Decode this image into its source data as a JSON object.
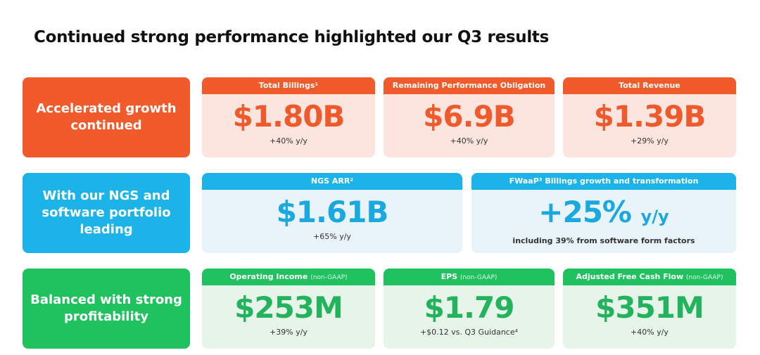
{
  "title": "Continued strong performance highlighted our Q3 results",
  "colors": {
    "orange": "#f15a2b",
    "blue": "#1cb4e8",
    "green": "#1fc25e"
  },
  "rows": [
    {
      "label": "Accelerated growth continued",
      "cards": [
        {
          "header": "Total Billings¹",
          "value": "$1.80B",
          "sub": "+40% y/y"
        },
        {
          "header": "Remaining Performance Obligation",
          "value": "$6.9B",
          "sub": "+40% y/y"
        },
        {
          "header": "Total Revenue",
          "value": "$1.39B",
          "sub": "+29% y/y"
        }
      ]
    },
    {
      "label": "With our NGS and software portfolio leading",
      "cards": [
        {
          "header": "NGS ARR²",
          "value": "$1.61B",
          "sub": "+65% y/y"
        },
        {
          "header": "FWaaP³ Billings growth and transformation",
          "value": "+25%",
          "unit": "y/y",
          "sub": "including 39% from software form factors"
        }
      ]
    },
    {
      "label": "Balanced with strong profitability",
      "cards": [
        {
          "header": "Operating Income",
          "qualifier": "(non-GAAP)",
          "value": "$253M",
          "sub": "+39% y/y"
        },
        {
          "header": "EPS",
          "qualifier": "(non-GAAP)",
          "value": "$1.79",
          "sub": "+$0.12 vs. Q3 Guidance⁴"
        },
        {
          "header": "Adjusted Free Cash Flow",
          "qualifier": "(non-GAAP)",
          "value": "$351M",
          "sub": "+40% y/y"
        }
      ]
    }
  ]
}
